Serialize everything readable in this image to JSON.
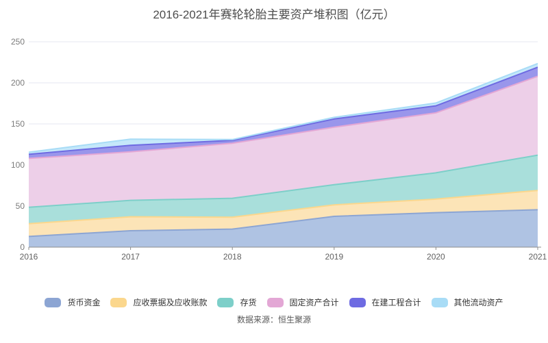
{
  "title": "2016-2021年赛轮轮胎主要资产堆积图（亿元）",
  "source": "数据来源：恒生聚源",
  "colors": {
    "background": "#ffffff",
    "title_text": "#4d4d4d",
    "axis_text": "#7a7a7a",
    "legend_text": "#333333",
    "source_text": "#595959",
    "grid_line": "#e4e7f2",
    "axis_line": "#8c8c8c"
  },
  "chart_data": {
    "type": "area",
    "stacked": true,
    "title": "2016-2021年赛轮轮胎主要资产堆积图（亿元）",
    "xlabel": "",
    "ylabel": "",
    "x_labels": [
      "2016",
      "2017",
      "2018",
      "2019",
      "2020",
      "2021"
    ],
    "y_ticks": [
      0,
      50,
      100,
      150,
      200,
      250
    ],
    "ylim": [
      0,
      250
    ],
    "grid": true,
    "legend_position": "bottom",
    "series": [
      {
        "name": "货币资金",
        "values": [
          13,
          20,
          22,
          37.5,
          42,
          45.5
        ],
        "line_color": "#8ca5d3",
        "fill_color": "#afc3e3"
      },
      {
        "name": "应收票据及应收账款",
        "values": [
          15.5,
          17,
          14.5,
          14,
          16.5,
          23.5
        ],
        "line_color": "#fbd78d",
        "fill_color": "#fce4b7"
      },
      {
        "name": "存货",
        "values": [
          20,
          20,
          23,
          24.5,
          32,
          43
        ],
        "line_color": "#7dcfc9",
        "fill_color": "#a9dfdb"
      },
      {
        "name": "固定资产合计",
        "values": [
          59.5,
          59,
          67,
          70,
          73,
          96
        ],
        "line_color": "#e3a7d5",
        "fill_color": "#edcfe8"
      },
      {
        "name": "在建工程合计",
        "values": [
          5,
          8,
          3.5,
          10,
          8.5,
          11
        ],
        "line_color": "#6e6be2",
        "fill_color": "#9996eb"
      },
      {
        "name": "其他流动资产",
        "values": [
          2.5,
          7.5,
          1,
          2,
          3.5,
          4.5
        ],
        "line_color": "#a8dcf6",
        "fill_color": "#c5e8fa"
      }
    ],
    "totals": [
      115.5,
      131.5,
      131,
      158,
      175.5,
      223.5
    ]
  }
}
